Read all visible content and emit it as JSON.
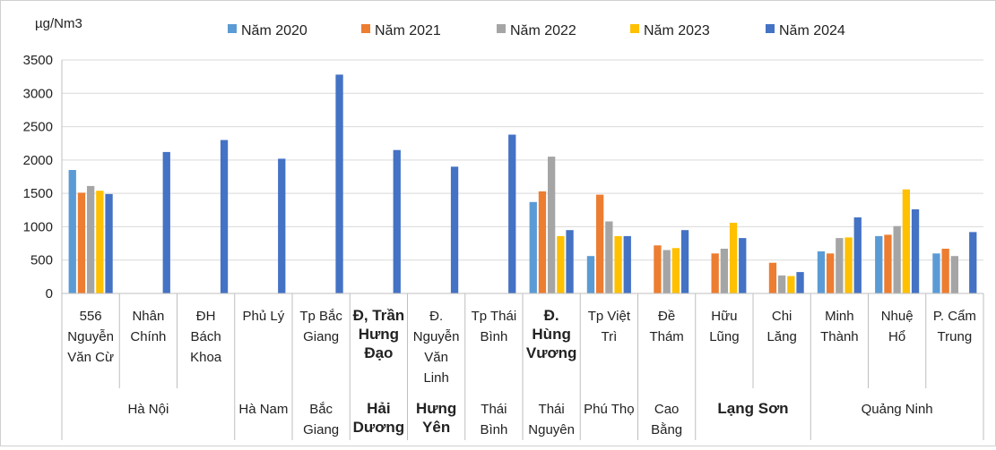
{
  "chart_data": {
    "type": "bar",
    "ylabel": "µg/Nm3",
    "ylim": [
      0,
      3500
    ],
    "yticks": [
      0,
      500,
      1000,
      1500,
      2000,
      2500,
      3000,
      3500
    ],
    "grid": true,
    "legend_position": "top",
    "series": [
      {
        "name": "Năm 2020",
        "color": "#5B9BD5",
        "values": [
          1850,
          null,
          null,
          null,
          null,
          null,
          null,
          null,
          1370,
          560,
          null,
          null,
          null,
          630,
          860,
          600
        ]
      },
      {
        "name": "Năm 2021",
        "color": "#ED7D31",
        "values": [
          1510,
          null,
          null,
          null,
          null,
          null,
          null,
          null,
          1530,
          1480,
          720,
          600,
          460,
          600,
          880,
          670
        ]
      },
      {
        "name": "Năm 2022",
        "color": "#A5A5A5",
        "values": [
          1610,
          null,
          null,
          null,
          null,
          null,
          null,
          null,
          2050,
          1080,
          650,
          670,
          270,
          830,
          1010,
          560
        ]
      },
      {
        "name": "Năm 2023",
        "color": "#FFC000",
        "values": [
          1540,
          null,
          null,
          null,
          null,
          null,
          null,
          null,
          860,
          860,
          680,
          1060,
          260,
          840,
          1560,
          null
        ]
      },
      {
        "name": "Năm 2024",
        "color": "#4472C4",
        "values": [
          1490,
          2120,
          2300,
          2020,
          3280,
          2150,
          1900,
          2380,
          950,
          860,
          950,
          830,
          320,
          1140,
          1260,
          920
        ]
      }
    ],
    "categories": [
      {
        "lines": [
          "556",
          "Nguyễn",
          "Văn Cừ"
        ],
        "bold": false
      },
      {
        "lines": [
          "Nhân",
          "Chính"
        ],
        "bold": false
      },
      {
        "lines": [
          "ĐH",
          "Bách",
          "Khoa"
        ],
        "bold": false
      },
      {
        "lines": [
          "Phủ Lý"
        ],
        "bold": false
      },
      {
        "lines": [
          "Tp Bắc",
          "Giang"
        ],
        "bold": false
      },
      {
        "lines": [
          "Đ, Trần",
          "Hưng",
          "Đạo"
        ],
        "bold": true
      },
      {
        "lines": [
          "Đ.",
          "Nguyễn",
          "Văn",
          "Linh"
        ],
        "bold": false
      },
      {
        "lines": [
          "Tp Thái",
          "Bình"
        ],
        "bold": false
      },
      {
        "lines": [
          "Đ.",
          "Hùng",
          "Vương"
        ],
        "bold": true
      },
      {
        "lines": [
          "Tp Việt",
          "Trì"
        ],
        "bold": false
      },
      {
        "lines": [
          "Đề",
          "Thám"
        ],
        "bold": false
      },
      {
        "lines": [
          "Hữu",
          "Lũng"
        ],
        "bold": false
      },
      {
        "lines": [
          "Chi",
          "Lăng"
        ],
        "bold": false
      },
      {
        "lines": [
          "Minh",
          "Thành"
        ],
        "bold": false
      },
      {
        "lines": [
          "Nhuệ",
          "Hổ"
        ],
        "bold": false
      },
      {
        "lines": [
          "P. Cẩm",
          "Trung"
        ],
        "bold": false
      }
    ],
    "groups": [
      {
        "lines": [
          "Hà Nội"
        ],
        "start": 0,
        "count": 3,
        "bold": false
      },
      {
        "lines": [
          "Hà Nam"
        ],
        "start": 3,
        "count": 1,
        "bold": false
      },
      {
        "lines": [
          "Bắc",
          "Giang"
        ],
        "start": 4,
        "count": 1,
        "bold": false
      },
      {
        "lines": [
          "Hải",
          "Dương"
        ],
        "start": 5,
        "count": 1,
        "bold": true
      },
      {
        "lines": [
          "Hưng",
          "Yên"
        ],
        "start": 6,
        "count": 1,
        "bold": true
      },
      {
        "lines": [
          "Thái",
          "Bình"
        ],
        "start": 7,
        "count": 1,
        "bold": false
      },
      {
        "lines": [
          "Thái",
          "Nguyên"
        ],
        "start": 8,
        "count": 1,
        "bold": false
      },
      {
        "lines": [
          "Phú Thọ"
        ],
        "start": 9,
        "count": 1,
        "bold": false
      },
      {
        "lines": [
          "Cao",
          "Bằng"
        ],
        "start": 10,
        "count": 1,
        "bold": false
      },
      {
        "lines": [
          "Lạng Sơn"
        ],
        "start": 11,
        "count": 2,
        "bold": true
      },
      {
        "lines": [
          "Quảng Ninh"
        ],
        "start": 13,
        "count": 3,
        "bold": false
      }
    ]
  }
}
